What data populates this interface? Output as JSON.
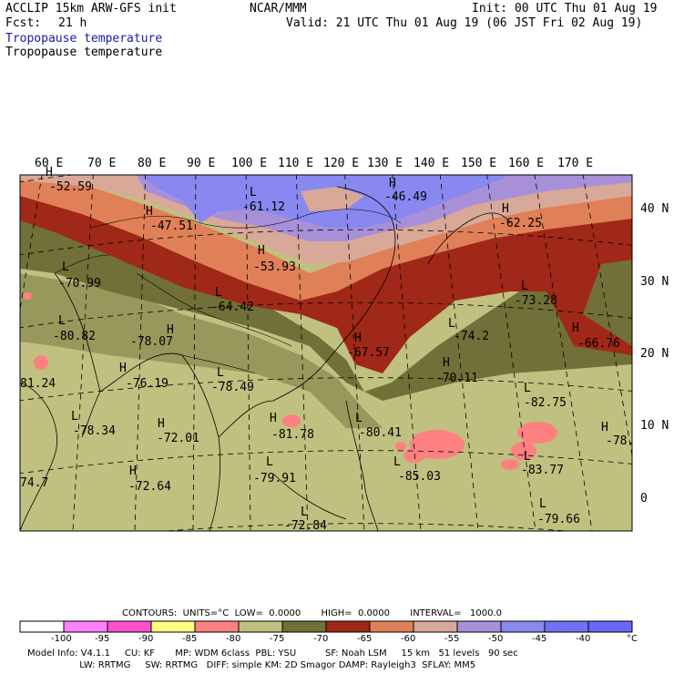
{
  "header": {
    "title_left": "ACCLIP 15km ARW-GFS init",
    "center": "NCAR/MMM",
    "init": "Init: 00 UTC Thu 01 Aug 19",
    "fcst_label": "Fcst:",
    "fcst_value": "21 h",
    "valid": "Valid: 21 UTC Thu 01 Aug 19 (06 JST Fri 02 Aug 19)",
    "field_line1": "Tropopause temperature",
    "field_line2": "Tropopause temperature"
  },
  "map": {
    "lon_labels": [
      "60 E",
      "70 E",
      "80 E",
      "90 E",
      "100 E",
      "110 E",
      "120 E",
      "130 E",
      "140 E",
      "150 E",
      "160 E",
      "170 E"
    ],
    "lat_labels": [
      "40 N",
      "30 N",
      "20 N",
      "10 N",
      "0"
    ],
    "extrema": [
      {
        "mark": "H",
        "value": "-52.59"
      },
      {
        "mark": "H",
        "value": "-47.51"
      },
      {
        "mark": "L",
        "value": "-61.12"
      },
      {
        "mark": "H",
        "value": "-46.49"
      },
      {
        "mark": "H",
        "value": "-62.25"
      },
      {
        "mark": "H",
        "value": "-53.93"
      },
      {
        "mark": "L",
        "value": "-70.99"
      },
      {
        "mark": "L",
        "value": "-64.42"
      },
      {
        "mark": "L",
        "value": "-73.28"
      },
      {
        "mark": "L",
        "value": "-80.82"
      },
      {
        "mark": "H",
        "value": "-78.07"
      },
      {
        "mark": "H",
        "value": "-67.57"
      },
      {
        "mark": "L",
        "value": "-74.2"
      },
      {
        "mark": "H",
        "value": "-66.76"
      },
      {
        "mark": "H",
        "value": "-76.19"
      },
      {
        "mark": "H",
        "value": "-70.11"
      },
      {
        "mark": "",
        "value": "81.24"
      },
      {
        "mark": "L",
        "value": "-78.49"
      },
      {
        "mark": "L",
        "value": "-82.75"
      },
      {
        "mark": "L",
        "value": "-78.34"
      },
      {
        "mark": "H",
        "value": "-72.01"
      },
      {
        "mark": "H",
        "value": "-81.78"
      },
      {
        "mark": "L",
        "value": "-80.41"
      },
      {
        "mark": "H",
        "value": "-78."
      },
      {
        "mark": "H",
        "value": "-72.64"
      },
      {
        "mark": "L",
        "value": "-79.91"
      },
      {
        "mark": "L",
        "value": "-85.03"
      },
      {
        "mark": "L",
        "value": "-83.77"
      },
      {
        "mark": "",
        "value": "74.7"
      },
      {
        "mark": "L",
        "value": "-72.84"
      },
      {
        "mark": "L",
        "value": "-79.66"
      }
    ],
    "colors": {
      "band_lt_100": "#ffffff",
      "band_100_95": "#ff80ff",
      "band_95_90": "#ff50cc",
      "band_90_85": "#ffff80",
      "band_85_80": "#ff8080",
      "band_80_75": "#c0c080",
      "band_75_70": "#707038",
      "band_70_65": "#a02818",
      "band_65_60": "#e08058",
      "band_60_55": "#d8a898",
      "band_55_50": "#a890d8",
      "band_50_45": "#8888f0",
      "band_45_40": "#7070f8",
      "band_gt_40": "#6868f8"
    }
  },
  "legend": {
    "contours_line": "CONTOURS:  UNITS=°C  LOW=  0.0000       HIGH=  0.0000       INTERVAL=   1000.0",
    "ticks": [
      "-100",
      "-95",
      "-90",
      "-85",
      "-80",
      "-75",
      "-70",
      "-65",
      "-60",
      "-55",
      "-50",
      "-45",
      "-40"
    ],
    "unit": "°C",
    "swatches": [
      "#ffffff",
      "#ff80ff",
      "#ff50cc",
      "#ffff80",
      "#ff8080",
      "#c0c080",
      "#707038",
      "#a02818",
      "#e08058",
      "#d8a898",
      "#a890d8",
      "#8888f0",
      "#7070f8",
      "#6868f8"
    ]
  },
  "footer": {
    "line1": "Model Info: V4.1.1     CU: KF       MP: WDM 6class  PBL: YSU          SF: Noah LSM     15 km   51 levels   90 sec",
    "line2": "                  LW: RRTMG     SW: RRTMG   DIFF: simple KM: 2D Smagor DAMP: Rayleigh3  SFLAY: MM5"
  }
}
